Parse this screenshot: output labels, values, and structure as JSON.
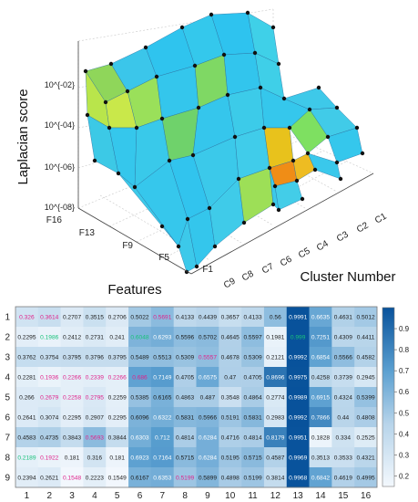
{
  "chart_data": [
    {
      "type": "surface",
      "zlabel": "Laplacian score",
      "ylabel": "Features",
      "xlabel": "Cluster Number",
      "z_scale": "log",
      "z_ticks": [
        "10^{-08}",
        "10^{-06}",
        "10^{-04}",
        "10^{-02}"
      ],
      "feature_ticks": [
        "F1",
        "F5",
        "F9",
        "F13",
        "F16"
      ],
      "cluster_ticks": [
        "C1",
        "C2",
        "C3",
        "C4",
        "C5",
        "C6",
        "C7",
        "C8",
        "C9"
      ],
      "grid": true
    },
    {
      "type": "heatmap",
      "rows": [
        "1",
        "2",
        "3",
        "4",
        "5",
        "6",
        "7",
        "8",
        "9"
      ],
      "columns": [
        "1",
        "2",
        "3",
        "4",
        "5",
        "6",
        "7",
        "8",
        "9",
        "10",
        "11",
        "12",
        "13",
        "14",
        "15",
        "16"
      ],
      "values": [
        [
          "0.326",
          "0.3614",
          "0.2707",
          "0.3515",
          "0.2706",
          "0.5022",
          "0.5691",
          "0.4133",
          "0.4439",
          "0.3657",
          "0.4133",
          "0.56",
          "0.9991",
          "0.6635",
          "0.4631",
          "0.5012"
        ],
        [
          "0.2295",
          "0.1986",
          "0.2412",
          "0.2731",
          "0.241",
          "0.6048",
          "0.6293",
          "0.5596",
          "0.5702",
          "0.4645",
          "0.5597",
          "0.1981",
          "0.999",
          "0.7251",
          "0.4309",
          "0.4411"
        ],
        [
          "0.3762",
          "0.3754",
          "0.3795",
          "0.3796",
          "0.3795",
          "0.5489",
          "0.5513",
          "0.5309",
          "0.5557",
          "0.4678",
          "0.5309",
          "0.2121",
          "0.9992",
          "0.6854",
          "0.5566",
          "0.4582"
        ],
        [
          "0.2281",
          "0.1936",
          "0.2266",
          "0.2339",
          "0.2266",
          "0.686",
          "0.7149",
          "0.4705",
          "0.6575",
          "0.47",
          "0.4705",
          "0.8696",
          "0.9975",
          "0.4258",
          "0.3739",
          "0.2945"
        ],
        [
          "0.266",
          "0.2679",
          "0.2258",
          "0.2795",
          "0.2259",
          "0.5385",
          "0.6165",
          "0.4863",
          "0.487",
          "0.3548",
          "0.4864",
          "0.2774",
          "0.9989",
          "0.6915",
          "0.4324",
          "0.5399"
        ],
        [
          "0.2641",
          "0.3074",
          "0.2295",
          "0.2907",
          "0.2295",
          "0.6096",
          "0.6322",
          "0.5831",
          "0.5966",
          "0.5191",
          "0.5831",
          "0.2983",
          "0.9992",
          "0.7866",
          "0.44",
          "0.4808"
        ],
        [
          "0.4583",
          "0.4735",
          "0.3843",
          "0.5693",
          "0.3844",
          "0.6303",
          "0.712",
          "0.4814",
          "0.6284",
          "0.4716",
          "0.4814",
          "0.8179",
          "0.9951",
          "0.1828",
          "0.334",
          "0.2525"
        ],
        [
          "0.2189",
          "0.1922",
          "0.181",
          "0.316",
          "0.181",
          "0.6923",
          "0.7164",
          "0.5715",
          "0.6284",
          "0.5195",
          "0.5715",
          "0.4587",
          "0.9969",
          "0.3513",
          "0.3533",
          "0.4321"
        ],
        [
          "0.2394",
          "0.2621",
          "0.1548",
          "0.2223",
          "0.1549",
          "0.6167",
          "0.6353",
          "0.5199",
          "0.5899",
          "0.4898",
          "0.5199",
          "0.3814",
          "0.9968",
          "0.6842",
          "0.4619",
          "0.4995"
        ]
      ],
      "highlight_colors": {
        "magenta": [
          "1-1",
          "1-2",
          "1-7",
          "2-2",
          "3-9",
          "4-2",
          "4-3",
          "4-4",
          "4-5",
          "4-6",
          "5-2",
          "5-3",
          "5-4",
          "7-4",
          "8-2",
          "9-3",
          "9-8"
        ],
        "green": [
          "2-2",
          "2-6",
          "2-13",
          "8-1"
        ]
      },
      "colorbar_ticks": [
        "0.9",
        "0.8",
        "0.7",
        "0.6",
        "0.5",
        "0.4",
        "0.3",
        "0.2"
      ],
      "color_min": 0.15,
      "color_max": 1.0,
      "colors": {
        "low": "#f3f8fd",
        "high": "#08529b",
        "magenta": "#e0218a",
        "green": "#19c27a"
      }
    }
  ]
}
